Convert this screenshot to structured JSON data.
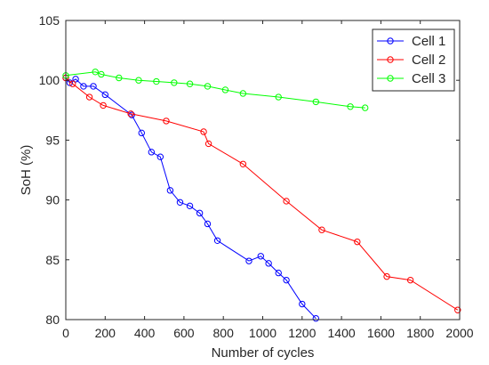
{
  "chart_data": {
    "type": "line",
    "xlabel": "Number of cycles",
    "ylabel": "SoH (%)",
    "xlim": [
      0,
      2000
    ],
    "ylim": [
      80,
      105
    ],
    "x_ticks": [
      0,
      200,
      400,
      600,
      800,
      1000,
      1200,
      1400,
      1600,
      1800,
      2000
    ],
    "y_ticks": [
      80,
      85,
      90,
      95,
      100,
      105
    ],
    "grid": false,
    "legend_position": "top-right",
    "marker": "open-circle",
    "series": [
      {
        "name": "Cell 1",
        "color": "#0000ff",
        "x": [
          0,
          20,
          50,
          90,
          140,
          200,
          335,
          385,
          435,
          480,
          530,
          580,
          630,
          680,
          720,
          770,
          930,
          990,
          1030,
          1080,
          1120,
          1200,
          1270
        ],
        "y": [
          100.2,
          99.8,
          100.1,
          99.5,
          99.5,
          98.8,
          97.1,
          95.6,
          94.0,
          93.6,
          90.8,
          89.8,
          89.5,
          88.9,
          88.0,
          86.6,
          84.9,
          85.3,
          84.7,
          83.9,
          83.3,
          81.3,
          80.1
        ]
      },
      {
        "name": "Cell 2",
        "color": "#ff0000",
        "x": [
          0,
          35,
          120,
          190,
          330,
          510,
          700,
          725,
          900,
          1120,
          1300,
          1480,
          1630,
          1750,
          1990
        ],
        "y": [
          100.2,
          99.7,
          98.6,
          97.9,
          97.2,
          96.6,
          95.7,
          94.7,
          93.0,
          89.9,
          87.5,
          86.5,
          83.6,
          83.3,
          80.8
        ]
      },
      {
        "name": "Cell 3",
        "color": "#00ff00",
        "x": [
          0,
          150,
          180,
          270,
          370,
          460,
          550,
          630,
          720,
          810,
          900,
          1080,
          1270,
          1445,
          1520
        ],
        "y": [
          100.4,
          100.7,
          100.5,
          100.2,
          100.0,
          99.9,
          99.8,
          99.7,
          99.5,
          99.2,
          98.9,
          98.6,
          98.2,
          97.8,
          97.7
        ]
      }
    ]
  }
}
